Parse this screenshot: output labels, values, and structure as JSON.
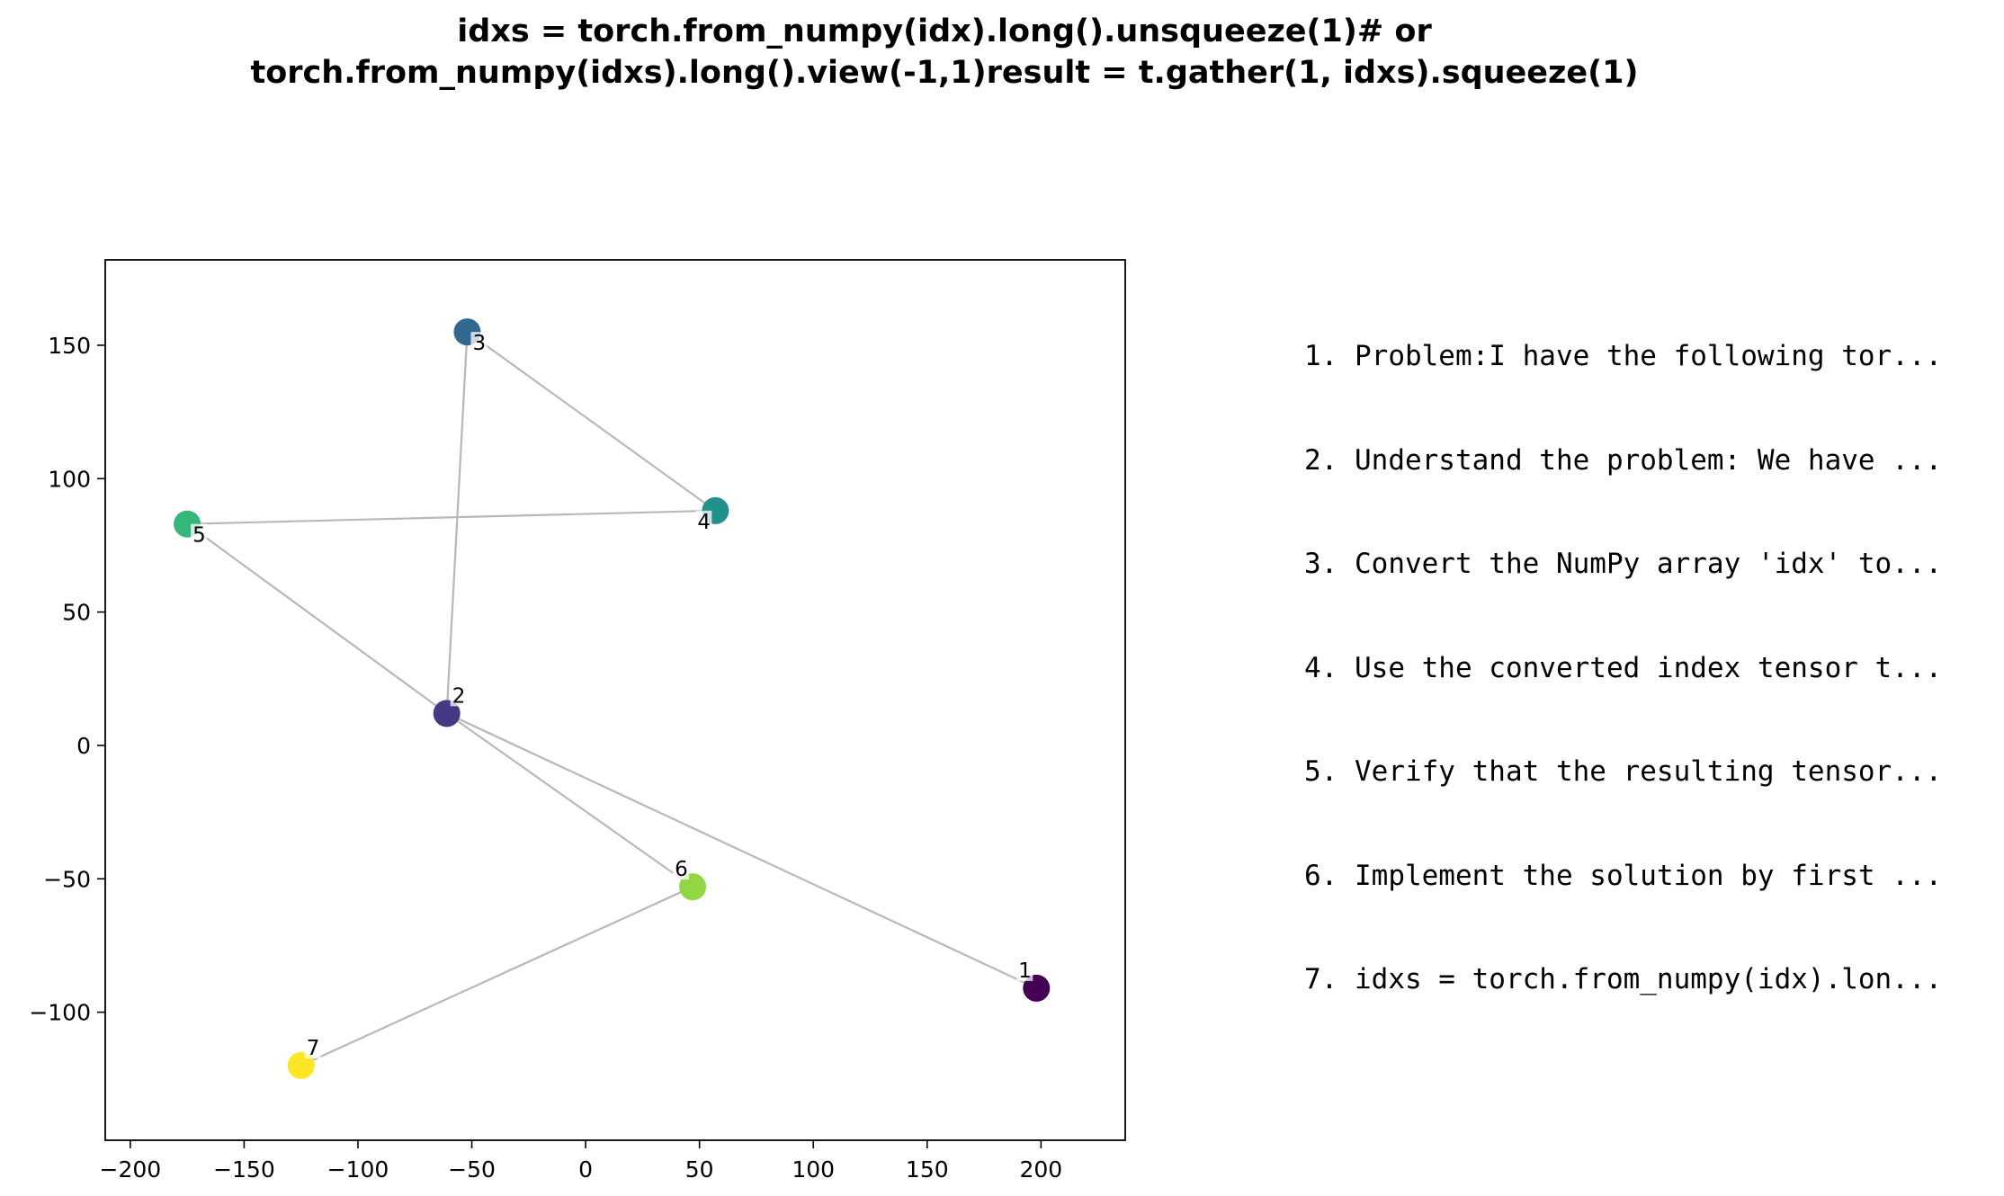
{
  "chart_data": {
    "type": "scatter",
    "title_lines": [
      "idxs = torch.from_numpy(idx).long().unsqueeze(1)# or",
      "torch.from_numpy(idxs).long().view(-1,1)result = t.gather(1, idxs).squeeze(1)"
    ],
    "xlabel": "",
    "ylabel": "",
    "xlim": [
      -211,
      237
    ],
    "ylim": [
      -148,
      182
    ],
    "xticks": [
      -200,
      -150,
      -100,
      -50,
      0,
      50,
      100,
      150,
      200
    ],
    "xtick_labels": [
      "−200",
      "−150",
      "−100",
      "−50",
      "0",
      "50",
      "100",
      "150",
      "200"
    ],
    "yticks": [
      -100,
      -50,
      0,
      50,
      100,
      150
    ],
    "ytick_labels": [
      "−100",
      "−50",
      "0",
      "50",
      "100",
      "150"
    ],
    "grid": false,
    "edge_color": "#b8b8b8",
    "points": [
      {
        "label": "1",
        "x": 198,
        "y": -91,
        "color": "#440154",
        "label_pos": "top-left"
      },
      {
        "label": "2",
        "x": -61,
        "y": 12,
        "color": "#443983",
        "label_pos": "top-right"
      },
      {
        "label": "3",
        "x": -52,
        "y": 155,
        "color": "#31688e",
        "label_pos": "bottom-right"
      },
      {
        "label": "4",
        "x": 57,
        "y": 88,
        "color": "#21918c",
        "label_pos": "bottom-left"
      },
      {
        "label": "5",
        "x": -175,
        "y": 83,
        "color": "#35b779",
        "label_pos": "bottom-right"
      },
      {
        "label": "6",
        "x": 47,
        "y": -53,
        "color": "#90d743",
        "label_pos": "top-left"
      },
      {
        "label": "7",
        "x": -125,
        "y": -120,
        "color": "#fde725",
        "label_pos": "top-right"
      }
    ],
    "edges": [
      [
        1,
        2
      ],
      [
        2,
        3
      ],
      [
        3,
        4
      ],
      [
        4,
        5
      ],
      [
        5,
        2
      ],
      [
        2,
        6
      ],
      [
        6,
        7
      ]
    ],
    "steps": [
      "1. Problem:I have the following tor...",
      "2. Understand the problem: We have ...",
      "3. Convert the NumPy array 'idx' to...",
      "4. Use the converted index tensor t...",
      "5. Verify that the resulting tensor...",
      "6. Implement the solution by first ...",
      "7. idxs = torch.from_numpy(idx).lon..."
    ]
  }
}
